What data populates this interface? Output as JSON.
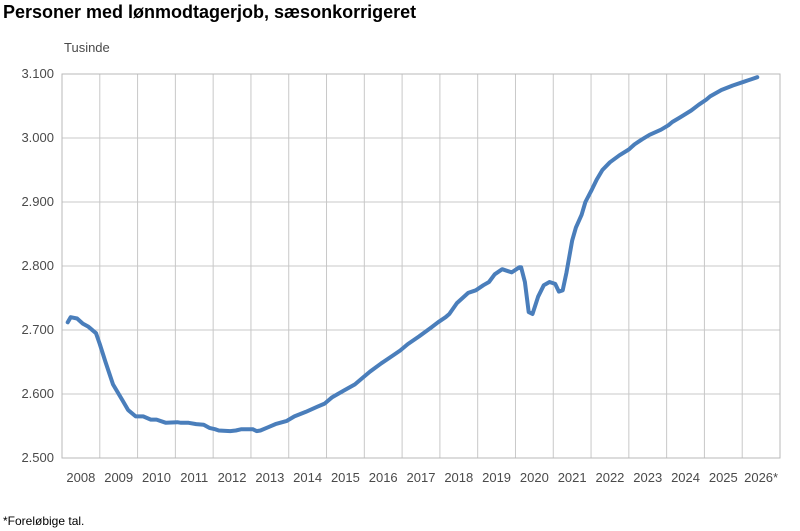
{
  "title": "Personer med lønmodtagerjob, sæsonkorrigeret",
  "footnote": "*Foreløbige tal.",
  "chart_data": {
    "type": "line",
    "title": "Personer med lønmodtagerjob, sæsonkorrigeret",
    "unit_label": "Tusinde",
    "ylim": [
      2500,
      3100
    ],
    "y_ticks": [
      "2.500",
      "2.600",
      "2.700",
      "2.800",
      "2.900",
      "3.000",
      "3.100"
    ],
    "x_categories": [
      "2008",
      "2009",
      "2010",
      "2011",
      "2012",
      "2013",
      "2014",
      "2015",
      "2016",
      "2017",
      "2018",
      "2019",
      "2020",
      "2021",
      "2022",
      "2023",
      "2024",
      "2025",
      "2026*"
    ],
    "grid": true,
    "line_color": "#4a7ebb",
    "series": [
      {
        "x": [
          2008.0,
          2008.08,
          2008.25,
          2008.4,
          2008.55,
          2008.75,
          2008.85,
          2009.0,
          2009.2,
          2009.45,
          2009.6,
          2009.8,
          2010.0,
          2010.2,
          2010.35,
          2010.6,
          2010.9,
          2011.0,
          2011.2,
          2011.4,
          2011.6,
          2011.75,
          2011.9,
          2012.0,
          2012.3,
          2012.45,
          2012.6,
          2012.9,
          2013.0,
          2013.1,
          2013.3,
          2013.5,
          2013.8,
          2014.0,
          2014.3,
          2014.6,
          2014.8,
          2015.0,
          2015.3,
          2015.6,
          2015.8,
          2016.0,
          2016.3,
          2016.6,
          2016.8,
          2017.0,
          2017.3,
          2017.6,
          2017.8,
          2018.0,
          2018.1,
          2018.3,
          2018.6,
          2018.8,
          2019.0,
          2019.15,
          2019.3,
          2019.5,
          2019.75,
          2019.95,
          2020.0,
          2020.1,
          2020.2,
          2020.3,
          2020.45,
          2020.6,
          2020.75,
          2020.9,
          2021.0,
          2021.1,
          2021.2,
          2021.35,
          2021.45,
          2021.6,
          2021.7,
          2021.85,
          2022.0,
          2022.15,
          2022.35,
          2022.6,
          2022.85,
          2023.0,
          2023.2,
          2023.4,
          2023.7,
          2023.9,
          2024.0,
          2024.2,
          2024.5,
          2024.7,
          2024.9,
          2025.0,
          2025.3,
          2025.6,
          2025.9,
          2026.0,
          2026.1,
          2026.25
        ],
        "values": [
          2712,
          2720,
          2718,
          2710,
          2705,
          2695,
          2678,
          2650,
          2615,
          2590,
          2575,
          2565,
          2565,
          2560,
          2560,
          2555,
          2556,
          2555,
          2555,
          2553,
          2552,
          2547,
          2545,
          2543,
          2542,
          2543,
          2545,
          2545,
          2542,
          2543,
          2548,
          2553,
          2558,
          2565,
          2572,
          2580,
          2585,
          2595,
          2605,
          2615,
          2625,
          2635,
          2648,
          2660,
          2668,
          2678,
          2690,
          2703,
          2712,
          2720,
          2725,
          2742,
          2758,
          2762,
          2770,
          2775,
          2787,
          2795,
          2790,
          2798,
          2798,
          2775,
          2728,
          2725,
          2752,
          2770,
          2775,
          2772,
          2760,
          2762,
          2790,
          2840,
          2860,
          2880,
          2900,
          2917,
          2935,
          2950,
          2962,
          2973,
          2982,
          2990,
          2998,
          3005,
          3013,
          3020,
          3025,
          3032,
          3043,
          3052,
          3060,
          3065,
          3075,
          3082,
          3088,
          3090,
          3092,
          3095
        ]
      }
    ]
  }
}
